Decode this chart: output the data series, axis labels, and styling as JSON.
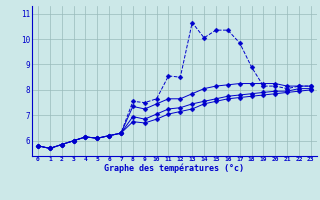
{
  "xlabel": "Graphe des températures (°c)",
  "bg_color": "#cce8e8",
  "line_color": "#0000cc",
  "xlim": [
    -0.5,
    23.5
  ],
  "ylim": [
    5.4,
    11.3
  ],
  "xticks": [
    0,
    1,
    2,
    3,
    4,
    5,
    6,
    7,
    8,
    9,
    10,
    11,
    12,
    13,
    14,
    15,
    16,
    17,
    18,
    19,
    20,
    21,
    22,
    23
  ],
  "yticks": [
    6,
    7,
    8,
    9,
    10,
    11
  ],
  "grid_color": "#99bbbb",
  "series": [
    {
      "y": [
        5.8,
        5.7,
        5.85,
        6.0,
        6.15,
        6.1,
        6.2,
        6.3,
        7.55,
        7.5,
        7.65,
        8.55,
        8.5,
        10.65,
        10.05,
        10.35,
        10.35,
        9.85,
        8.9,
        8.15,
        8.15,
        8.05,
        8.15,
        8.15
      ],
      "linestyle": "--",
      "marker": "D",
      "markersize": 2.5
    },
    {
      "y": [
        5.8,
        5.7,
        5.85,
        6.0,
        6.15,
        6.1,
        6.2,
        6.3,
        7.35,
        7.25,
        7.45,
        7.65,
        7.65,
        7.85,
        8.05,
        8.15,
        8.2,
        8.25,
        8.25,
        8.25,
        8.25,
        8.15,
        8.15,
        8.15
      ],
      "linestyle": "-",
      "marker": "D",
      "markersize": 2.5
    },
    {
      "y": [
        5.8,
        5.7,
        5.85,
        6.0,
        6.15,
        6.1,
        6.2,
        6.3,
        6.95,
        6.85,
        7.05,
        7.25,
        7.3,
        7.45,
        7.55,
        7.65,
        7.75,
        7.8,
        7.85,
        7.9,
        7.95,
        7.95,
        8.05,
        8.05
      ],
      "linestyle": "-",
      "marker": "D",
      "markersize": 2.5
    },
    {
      "y": [
        5.8,
        5.7,
        5.85,
        6.0,
        6.15,
        6.1,
        6.2,
        6.3,
        6.75,
        6.7,
        6.85,
        7.05,
        7.15,
        7.25,
        7.45,
        7.55,
        7.65,
        7.7,
        7.75,
        7.8,
        7.85,
        7.9,
        7.95,
        8.0
      ],
      "linestyle": "-",
      "marker": "D",
      "markersize": 2.5
    }
  ]
}
